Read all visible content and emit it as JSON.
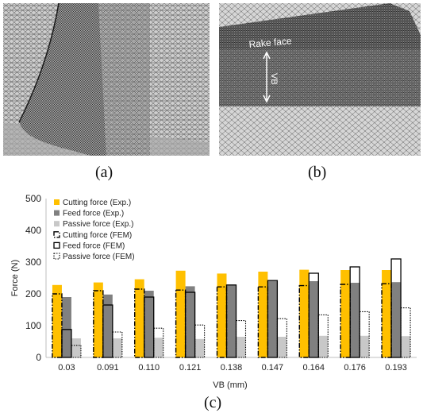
{
  "captions": {
    "a": "(a)",
    "b": "(b)",
    "c": "(c)"
  },
  "panel_b": {
    "rake_face_label": "Rake face",
    "vb_label": "VB"
  },
  "chart_data": {
    "type": "bar",
    "xlabel": "VB (mm)",
    "ylabel": "Force (N)",
    "ylim": [
      0,
      500
    ],
    "yticks": [
      0,
      100,
      200,
      300,
      400,
      500
    ],
    "grid": false,
    "legend_position": "top-left",
    "categories": [
      "0.03",
      "0.091",
      "0.110",
      "0.121",
      "0.138",
      "0.147",
      "0.164",
      "0.176",
      "0.193"
    ],
    "series": [
      {
        "name": "Cutting force (Exp.)",
        "style": "filled",
        "color": "#ffc000",
        "values": [
          228,
          236,
          246,
          273,
          264,
          270,
          276,
          275,
          275
        ]
      },
      {
        "name": "Feed force (Exp.)",
        "style": "filled",
        "color": "#808080",
        "values": [
          190,
          198,
          210,
          224,
          228,
          240,
          240,
          235,
          237
        ]
      },
      {
        "name": "Passive force (Exp.)",
        "style": "filled",
        "color": "#c8c8c8",
        "values": [
          60,
          60,
          62,
          58,
          65,
          65,
          68,
          68,
          67
        ]
      },
      {
        "name": "Cutting force (FEM)",
        "style": "dash-dot outline",
        "color": "#000000",
        "values": [
          200,
          210,
          215,
          212,
          222,
          222,
          226,
          230,
          232
        ]
      },
      {
        "name": "Feed force (FEM)",
        "style": "solid outline",
        "color": "#000000",
        "values": [
          88,
          165,
          190,
          205,
          228,
          242,
          265,
          285,
          310
        ]
      },
      {
        "name": "Passive force (FEM)",
        "style": "dotted outline",
        "color": "#000000",
        "values": [
          38,
          80,
          92,
          102,
          116,
          122,
          134,
          144,
          156
        ]
      }
    ]
  }
}
